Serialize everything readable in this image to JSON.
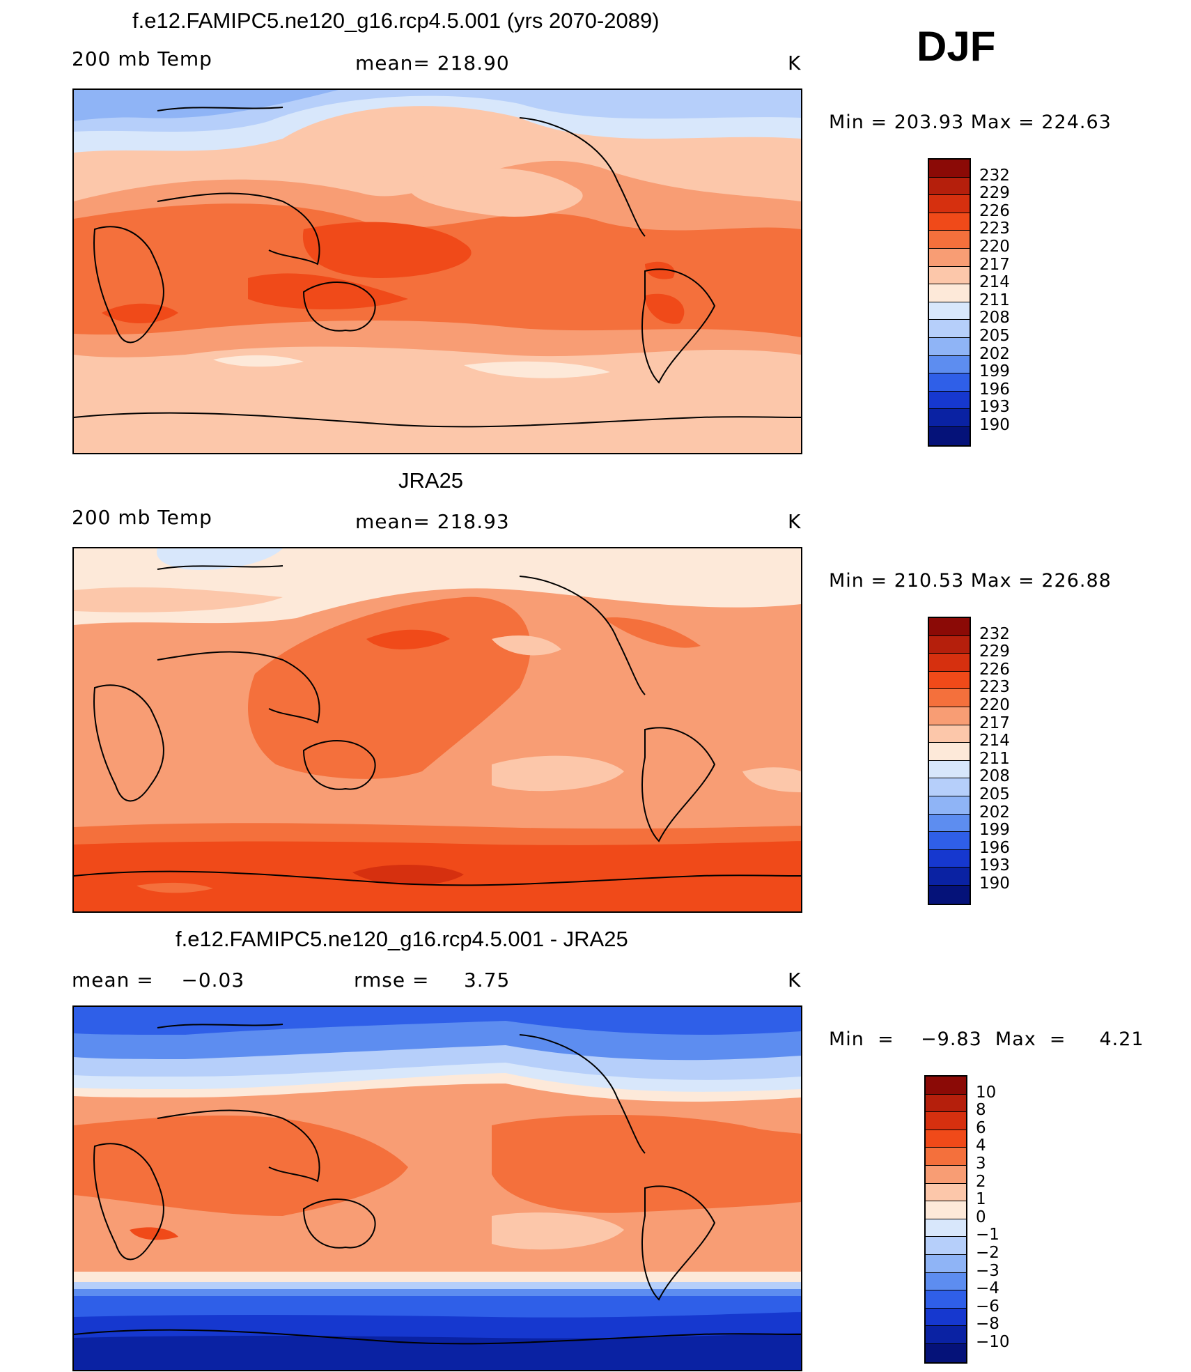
{
  "season": "DJF",
  "panels": [
    {
      "title": "f.e12.FAMIPC5.ne120_g16.rcp4.5.001 (yrs 2070-2089)",
      "left": "200 mb Temp",
      "center": "mean= 218.90",
      "units": "K",
      "minmax": "Min  =  203.93  Max  =  224.63",
      "levels": [
        "232",
        "229",
        "226",
        "223",
        "220",
        "217",
        "214",
        "211",
        "208",
        "205",
        "202",
        "199",
        "196",
        "193",
        "190"
      ],
      "colors": [
        "#8b0a06",
        "#b51f0c",
        "#d6300f",
        "#f04a19",
        "#f4703c",
        "#f89d74",
        "#fcc7aa",
        "#fde9d9",
        "#d8e7fb",
        "#b6cffa",
        "#8fb4f6",
        "#5d8df0",
        "#2f5fe8",
        "#1638cf",
        "#0a22a3",
        "#051279"
      ]
    },
    {
      "title": "JRA25",
      "left": "200 mb Temp",
      "center": "mean= 218.93",
      "units": "K",
      "minmax": "Min  =  210.53  Max  =  226.88",
      "levels": [
        "232",
        "229",
        "226",
        "223",
        "220",
        "217",
        "214",
        "211",
        "208",
        "205",
        "202",
        "199",
        "196",
        "193",
        "190"
      ],
      "colors": [
        "#8b0a06",
        "#b51f0c",
        "#d6300f",
        "#f04a19",
        "#f4703c",
        "#f89d74",
        "#fcc7aa",
        "#fde9d9",
        "#d8e7fb",
        "#b6cffa",
        "#8fb4f6",
        "#5d8df0",
        "#2f5fe8",
        "#1638cf",
        "#0a22a3",
        "#051279"
      ]
    },
    {
      "title": "f.e12.FAMIPC5.ne120_g16.rcp4.5.001 - JRA25",
      "left": "mean =    −0.03",
      "center": "rmse =     3.75",
      "units": "K",
      "minmax": "Min  =    −9.83  Max  =     4.21",
      "levels": [
        "10",
        "8",
        "6",
        "4",
        "3",
        "2",
        "1",
        "0",
        "−1",
        "−2",
        "−3",
        "−4",
        "−6",
        "−8",
        "−10"
      ],
      "colors": [
        "#8b0a06",
        "#b51f0c",
        "#d6300f",
        "#f04a19",
        "#f4703c",
        "#f89d74",
        "#fcc7aa",
        "#fde9d9",
        "#d8e7fb",
        "#b6cffa",
        "#8fb4f6",
        "#5d8df0",
        "#2f5fe8",
        "#1638cf",
        "#0a22a3",
        "#051279"
      ]
    }
  ]
}
